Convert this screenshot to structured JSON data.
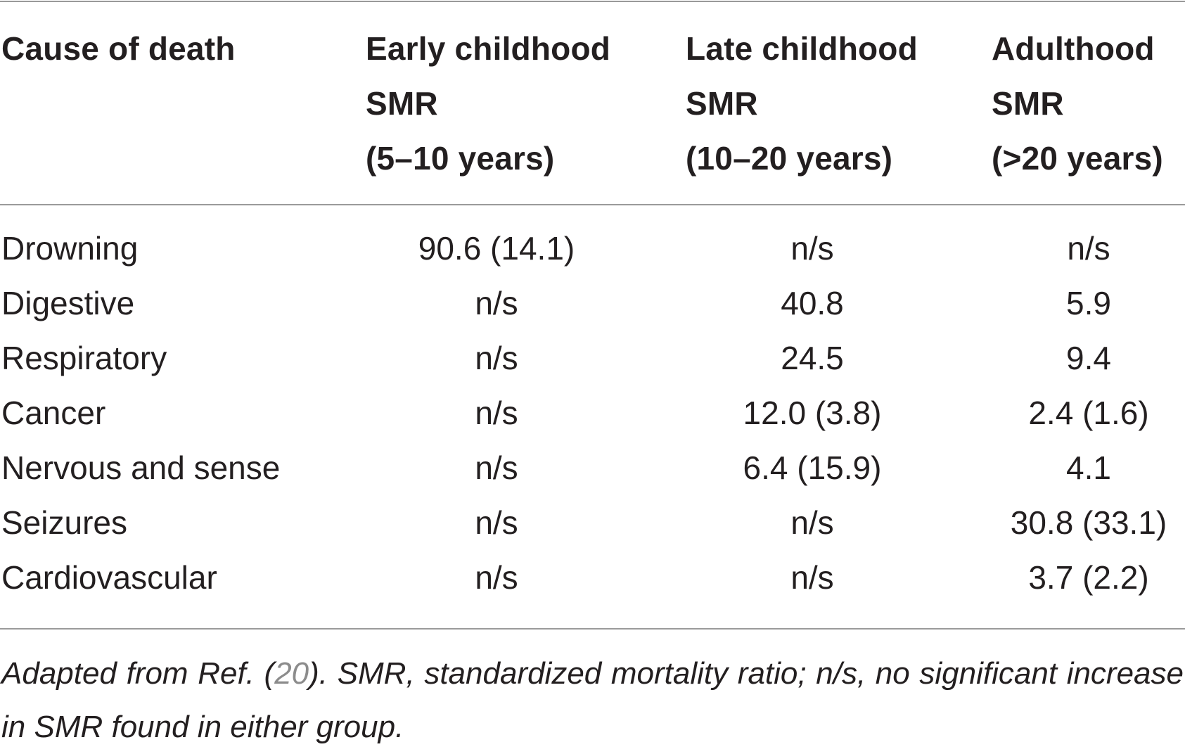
{
  "table": {
    "headers": [
      {
        "line1": "Cause of death",
        "line2": "",
        "line3": ""
      },
      {
        "line1": "Early childhood",
        "line2": "SMR",
        "line3": "(5–10 years)"
      },
      {
        "line1": "Late childhood",
        "line2": "SMR",
        "line3": "(10–20 years)"
      },
      {
        "line1": "Adulthood",
        "line2": "SMR",
        "line3": "(>20 years)"
      }
    ],
    "rows": [
      {
        "cause": "Drowning",
        "early": "90.6 (14.1)",
        "late": "n/s",
        "adult": "n/s"
      },
      {
        "cause": "Digestive",
        "early": "n/s",
        "late": "40.8",
        "adult": "5.9"
      },
      {
        "cause": "Respiratory",
        "early": "n/s",
        "late": "24.5",
        "adult": "9.4"
      },
      {
        "cause": "Cancer",
        "early": "n/s",
        "late": "12.0 (3.8)",
        "adult": "2.4 (1.6)"
      },
      {
        "cause": "Nervous and sense",
        "early": "n/s",
        "late": "6.4 (15.9)",
        "adult": "4.1"
      },
      {
        "cause": "Seizures",
        "early": "n/s",
        "late": "n/s",
        "adult": "30.8 (33.1)"
      },
      {
        "cause": "Cardiovascular",
        "early": "n/s",
        "late": "n/s",
        "adult": "3.7 (2.2)"
      }
    ]
  },
  "footnote": {
    "before_ref": "Adapted from Ref. (",
    "ref": "20",
    "after_ref": "). SMR, standardized mortality ratio; n/s, no significant increase in SMR found in either group."
  }
}
